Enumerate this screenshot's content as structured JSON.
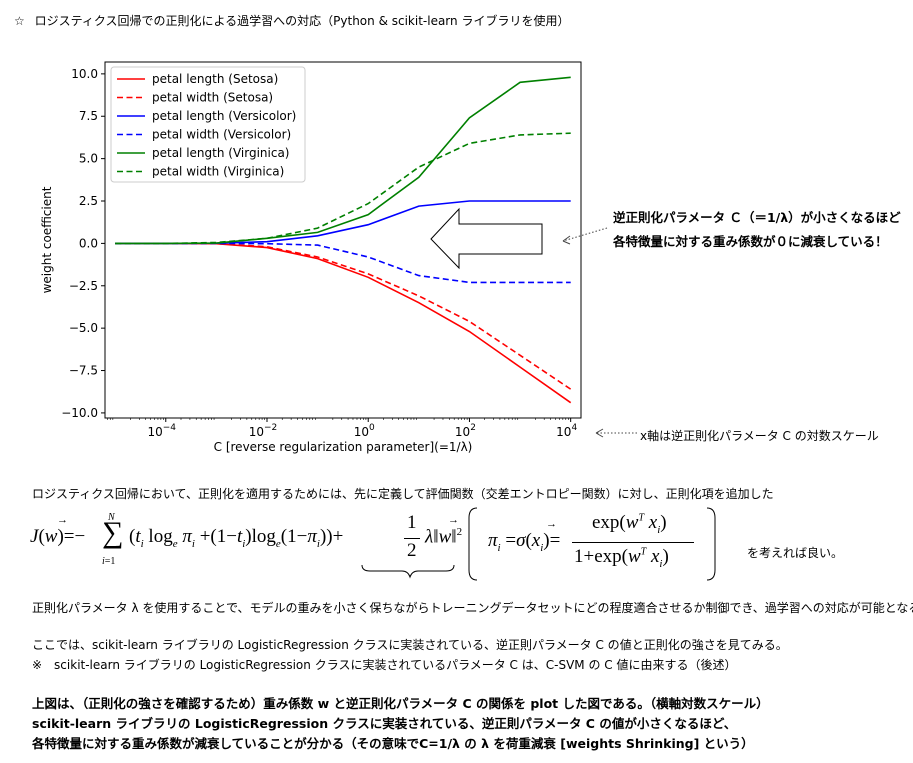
{
  "header": {
    "star": "☆",
    "title": "ロジスティクス回帰での正則化による過学習への対応（Python & scikit-learn ライブラリを使用）"
  },
  "chart_data": {
    "type": "line",
    "xscale": "log",
    "xlabel": "C [reverse regularization parameter](=1/λ)",
    "ylabel": "weight coefficient",
    "xlim": [
      6.3e-06,
      16000
    ],
    "ylim": [
      -10.3,
      10.7
    ],
    "xticks": [
      {
        "value": 0.0001,
        "base": "10",
        "exp": "−4"
      },
      {
        "value": 0.01,
        "base": "10",
        "exp": "−2"
      },
      {
        "value": 1,
        "base": "10",
        "exp": "0"
      },
      {
        "value": 100,
        "base": "10",
        "exp": "2"
      },
      {
        "value": 10000,
        "base": "10",
        "exp": "4"
      }
    ],
    "yticks": [
      {
        "value": 10,
        "label": "10.0"
      },
      {
        "value": 7.5,
        "label": "7.5"
      },
      {
        "value": 5,
        "label": "5.0"
      },
      {
        "value": 2.5,
        "label": "2.5"
      },
      {
        "value": 0,
        "label": "0.0"
      },
      {
        "value": -2.5,
        "label": "−2.5"
      },
      {
        "value": -5,
        "label": "−5.0"
      },
      {
        "value": -7.5,
        "label": "−7.5"
      },
      {
        "value": -10,
        "label": "−10.0"
      }
    ],
    "x": [
      1e-05,
      0.0001,
      0.001,
      0.01,
      0.1,
      1,
      10,
      100,
      1000,
      10000
    ],
    "series": [
      {
        "name": "petal length (Setosa)",
        "color": "#ff0000",
        "dash": "solid",
        "values": [
          0,
          0,
          -0.02,
          -0.25,
          -0.9,
          -2.0,
          -3.5,
          -5.2,
          -7.3,
          -9.4
        ]
      },
      {
        "name": "petal width (Setosa)",
        "color": "#ff0000",
        "dash": "dashed",
        "values": [
          0,
          0,
          -0.01,
          -0.2,
          -0.8,
          -1.8,
          -3.1,
          -4.6,
          -6.6,
          -8.6
        ]
      },
      {
        "name": "petal length (Versicolor)",
        "color": "#0000ff",
        "dash": "solid",
        "values": [
          0,
          0,
          0.01,
          0.1,
          0.45,
          1.1,
          2.2,
          2.5,
          2.5,
          2.5
        ]
      },
      {
        "name": "petal width (Versicolor)",
        "color": "#0000ff",
        "dash": "dashed",
        "values": [
          0,
          0,
          0,
          -0.02,
          -0.1,
          -0.8,
          -1.9,
          -2.3,
          -2.3,
          -2.3
        ]
      },
      {
        "name": "petal length (Virginica)",
        "color": "#008000",
        "dash": "solid",
        "values": [
          0,
          0,
          0.02,
          0.3,
          0.65,
          1.7,
          3.9,
          7.4,
          9.5,
          9.8
        ]
      },
      {
        "name": "petal width (Virginica)",
        "color": "#008000",
        "dash": "dashed",
        "values": [
          0,
          0,
          0.05,
          0.3,
          0.9,
          2.35,
          4.5,
          5.9,
          6.4,
          6.5
        ]
      }
    ]
  },
  "annotations": {
    "arrow_note_line1": "逆正則化パラメータ Ｃ（＝1/λ）が小さくなるほど",
    "arrow_note_line2": "各特徴量に対する重み係数が０に減衰している！",
    "axis_note": "x軸は逆正則化パラメータ C の対数スケール"
  },
  "body": {
    "intro": "ロジスティクス回帰において、正則化を適用するためには、先に定義して評価関数（交差エントロピー関数）に対し、正則化項を追加した",
    "formula_suffix": "を考えれば良い。",
    "para1": "正則化パラメータ λ を使用することで、モデルの重みを小さく保ちながらトレーニングデータセットにどの程度適合させるか制御でき、過学習への対応が可能となる。",
    "para2": "ここでは、scikit-learn ライブラリの LogisticRegression クラスに実装されている、逆正則パラメータ C の値と正則化の強さを見てみる。",
    "para3": "※　scikit-learn ライブラリの LogisticRegression クラスに実装されているパラメータ C は、C-SVM の C 値に由来する（後述）",
    "summary1": "上図は、（正則化の強さを確認するため）重み係数 w と逆正則化パラメータ C の関係を plot した図である。（横軸対数スケール）",
    "summary2": "scikit-learn ライブラリの LogisticRegression クラスに実装されている、逆正則パラメータ C の値が小さくなるほど、",
    "summary3": "各特徴量に対する重み係数が減衰していることが分かる（その意味でC=1/λ の λ を荷重減衰 [weights Shrinking] という）"
  }
}
